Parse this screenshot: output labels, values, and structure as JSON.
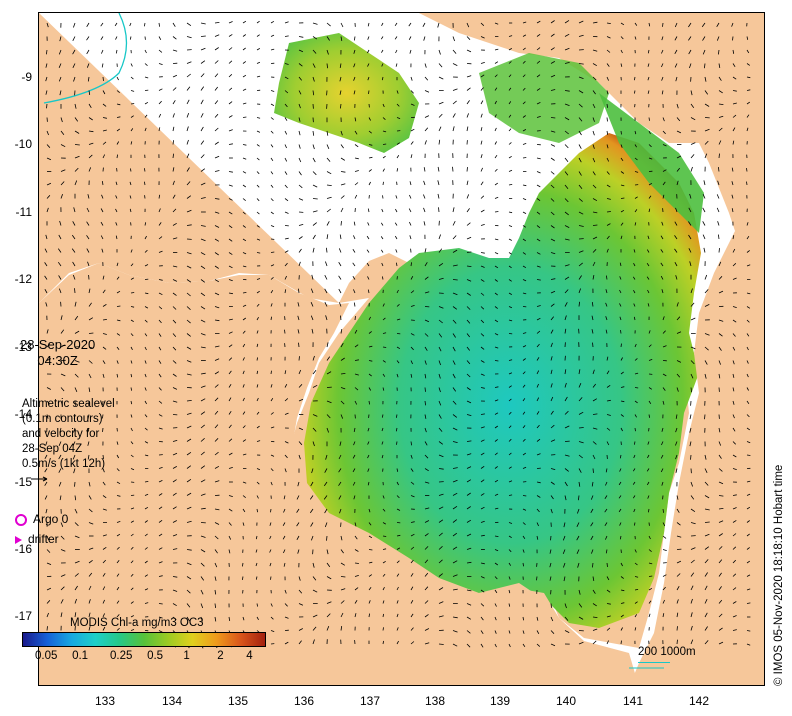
{
  "map": {
    "date": "28-Sep-2020",
    "time": "04:30Z",
    "altimetry_lines": [
      "Altimetric sealevel",
      "(0.1m contours)",
      "and velocity for",
      "28-Sep 04Z",
      "0.5m/s (1kt 12h)"
    ],
    "argo_label": "Argo 0",
    "drifter_label": "drifter",
    "colorbar_title": "MODIS Chl-a mg/m3 OC3",
    "colorbar_ticks": [
      "0.05",
      "0.1",
      "0.25",
      "0.5",
      "1",
      "2",
      "4"
    ],
    "scale_label": "200  1000m",
    "side_text": "© IMOS 05-Nov-2020 18:18:10 Hobart time",
    "lat_labels": [
      "-9",
      "-10",
      "-11",
      "-12",
      "-13",
      "-14",
      "-15",
      "-16",
      "-17"
    ],
    "lon_labels": [
      "133",
      "134",
      "135",
      "136",
      "137",
      "138",
      "139",
      "140",
      "141",
      "142"
    ],
    "colors": {
      "land": "#f6c79a",
      "ocean": "#ffffff",
      "argo": "#e000d0",
      "contour": "#17c7c7"
    },
    "colorbar_colors": [
      "#1a1a8c",
      "#1560d8",
      "#18a8e0",
      "#1ecfc8",
      "#27c887",
      "#57c23b",
      "#9ccb22",
      "#e0d01e",
      "#ef9a1c",
      "#d9551b",
      "#a3210f"
    ]
  }
}
